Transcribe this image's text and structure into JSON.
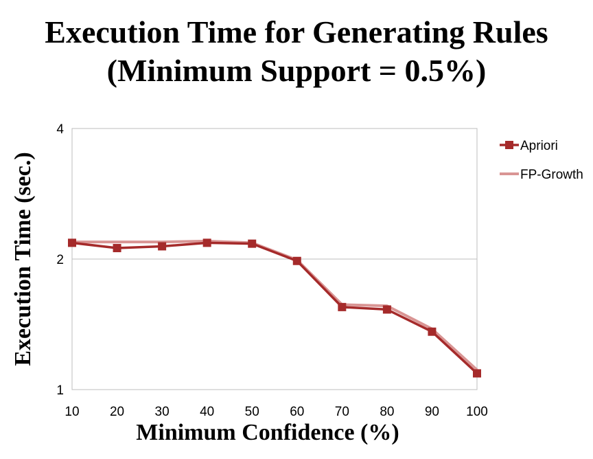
{
  "chart_data": {
    "type": "line",
    "title_lines": [
      "Execution Time for Generating Rules",
      "(Minimum Support = 0.5%)"
    ],
    "xlabel": "Minimum Confidence (%)",
    "ylabel": "Execution Time (sec.)",
    "x": [
      10,
      20,
      30,
      40,
      50,
      60,
      70,
      80,
      90,
      100
    ],
    "y_scale": "log2",
    "ylim": [
      1,
      4
    ],
    "yticks": [
      1,
      2,
      4
    ],
    "grid": true,
    "legend_position": "right",
    "series": [
      {
        "name": "Apriori",
        "color": "#a52a2a",
        "marker": "square",
        "values": [
          2.18,
          2.12,
          2.14,
          2.18,
          2.17,
          1.98,
          1.55,
          1.53,
          1.36,
          1.09
        ]
      },
      {
        "name": "FP-Growth",
        "color": "#d99594",
        "marker": "none",
        "values": [
          2.19,
          2.19,
          2.19,
          2.2,
          2.18,
          1.99,
          1.57,
          1.56,
          1.38,
          1.11
        ]
      }
    ]
  }
}
